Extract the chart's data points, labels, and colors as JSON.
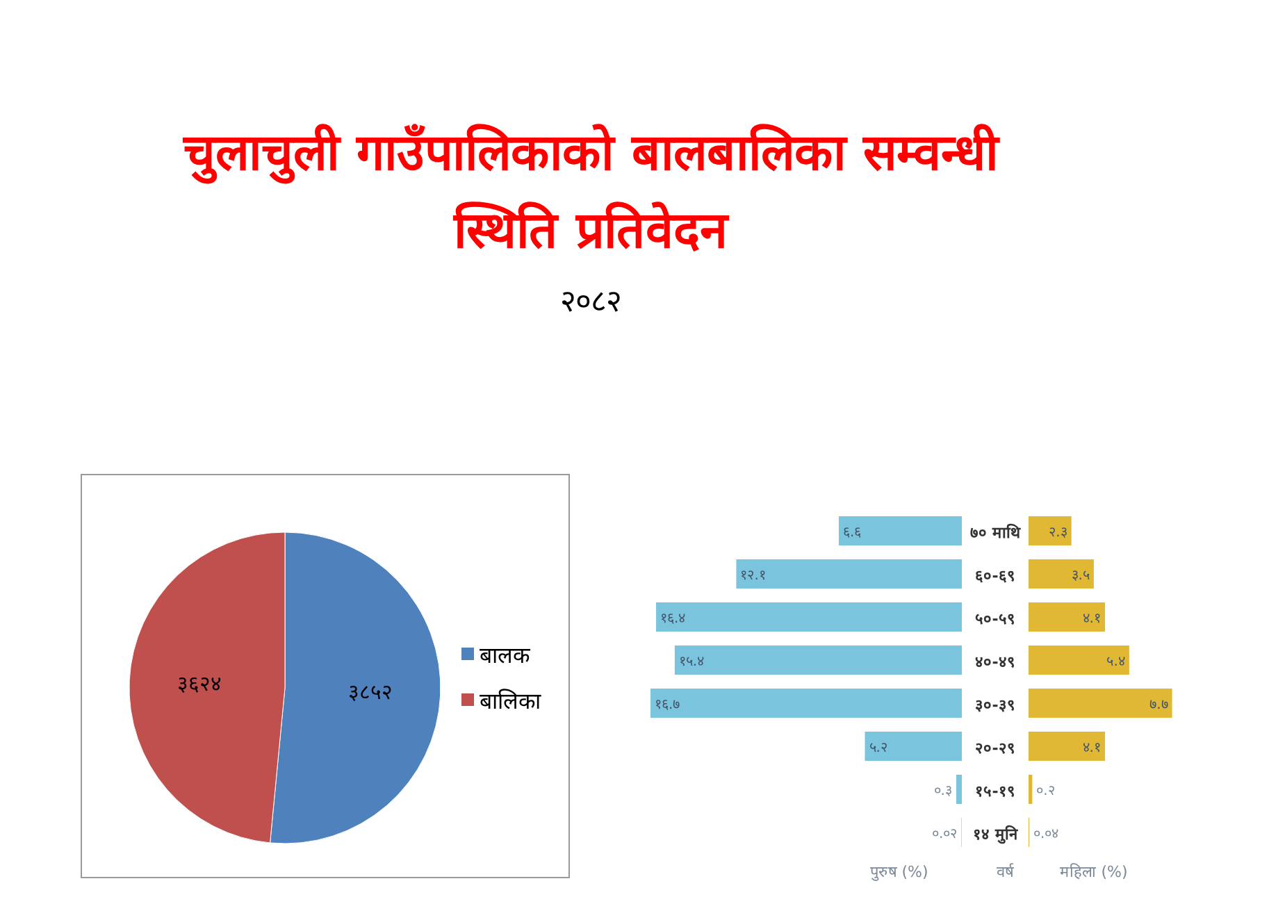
{
  "chart_data": [
    {
      "type": "pie",
      "title": "चुलाचुली गाउँपालिकाको बालबालिका सम्वन्धी स्थिति प्रतिवेदन",
      "subtitle": "२०८२",
      "categories": [
        "बालक",
        "बालिका"
      ],
      "values": [
        3852,
        3624
      ],
      "value_labels": [
        "३८५२",
        "३६२४"
      ],
      "colors": [
        "#4f81bd",
        "#c0504d"
      ],
      "legend": "right"
    },
    {
      "type": "bar",
      "orientation": "horizontal",
      "ylabel": "वर्ष",
      "categories": [
        "७० माथि",
        "६०-६९",
        "५०-५९",
        "४०-४९",
        "३०-३९",
        "२०-२९",
        "१५-१९",
        "१४ मुनि"
      ],
      "series": [
        {
          "name": "पुरुष (%)",
          "color": "#7ac4dd",
          "values": [
            6.6,
            12.1,
            16.4,
            15.4,
            16.7,
            5.2,
            0.3,
            0.02
          ],
          "value_labels": [
            "६.६",
            "१२.१",
            "१६.४",
            "१५.४",
            "१६.७",
            "५.२",
            "०.३",
            "०.०२"
          ]
        }
      ]
    },
    {
      "type": "bar",
      "orientation": "horizontal",
      "categories": [
        null,
        null,
        null,
        null,
        null,
        null,
        null,
        null
      ],
      "series": [
        {
          "name": "महिला (%)",
          "color": "#e0b834",
          "values": [
            2.3,
            3.5,
            4.1,
            5.4,
            7.7,
            4.1,
            0.2,
            0.04
          ],
          "value_labels": [
            "२.३",
            "३.५",
            "४.१",
            "५.४",
            "७.७",
            "४.१",
            "०.२",
            "०.०४"
          ]
        }
      ]
    }
  ]
}
